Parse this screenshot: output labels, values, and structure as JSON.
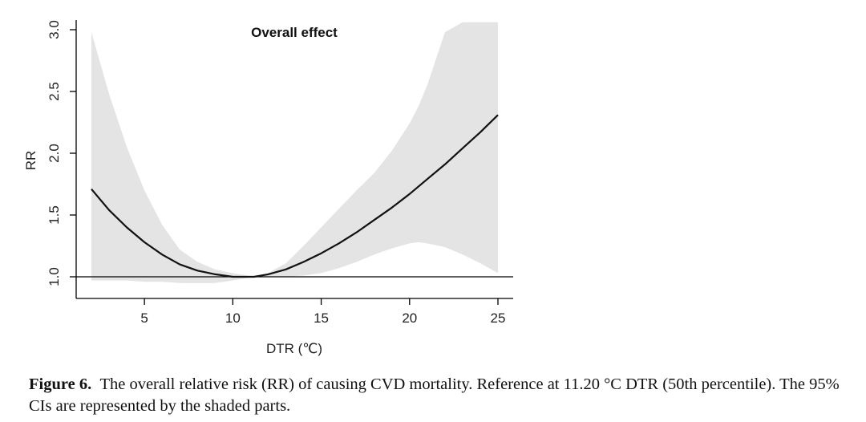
{
  "chart_data": {
    "type": "line",
    "title": "Overall effect",
    "xlabel": "DTR (℃)",
    "ylabel": "RR",
    "xlim": [
      2,
      25
    ],
    "ylim": [
      0.83,
      3.06
    ],
    "x_ticks": [
      5,
      10,
      15,
      20,
      25
    ],
    "y_ticks": [
      "1.0",
      "1.5",
      "2.0",
      "2.5",
      "3.0"
    ],
    "reference_line": 1.0,
    "series": [
      {
        "name": "RR",
        "x": [
          2,
          3,
          4,
          5,
          6,
          7,
          8,
          9,
          10,
          11.2,
          12,
          13,
          14,
          15,
          16,
          17,
          18,
          19,
          20,
          21,
          22,
          23,
          24,
          25
        ],
        "values": [
          1.71,
          1.54,
          1.4,
          1.28,
          1.18,
          1.1,
          1.05,
          1.02,
          1.0,
          1.0,
          1.02,
          1.06,
          1.12,
          1.19,
          1.27,
          1.36,
          1.46,
          1.56,
          1.67,
          1.79,
          1.91,
          2.04,
          2.17,
          2.31
        ]
      }
    ],
    "ci": {
      "name": "95% CI",
      "x": [
        2,
        3,
        4,
        5,
        6,
        7,
        8,
        9,
        10,
        11.2,
        12,
        13,
        14,
        15,
        16,
        17,
        18,
        19,
        20,
        20.5,
        21,
        22,
        23,
        24,
        25
      ],
      "lower": [
        0.97,
        0.97,
        0.97,
        0.96,
        0.96,
        0.95,
        0.95,
        0.95,
        0.97,
        1.0,
        1.0,
        1.0,
        1.01,
        1.03,
        1.07,
        1.12,
        1.18,
        1.23,
        1.27,
        1.28,
        1.27,
        1.24,
        1.18,
        1.11,
        1.03
      ],
      "upper": [
        2.98,
        2.48,
        2.05,
        1.7,
        1.42,
        1.22,
        1.12,
        1.06,
        1.03,
        1.0,
        1.03,
        1.11,
        1.25,
        1.4,
        1.55,
        1.7,
        1.84,
        2.02,
        2.24,
        2.38,
        2.55,
        2.98,
        3.06,
        3.06,
        3.06
      ]
    }
  },
  "caption": {
    "label": "Figure 6.",
    "text": "The overall relative risk (RR) of causing CVD mortality. Reference at 11.20 °C DTR (50th percentile). The 95% CIs are represented by the shaded parts."
  }
}
